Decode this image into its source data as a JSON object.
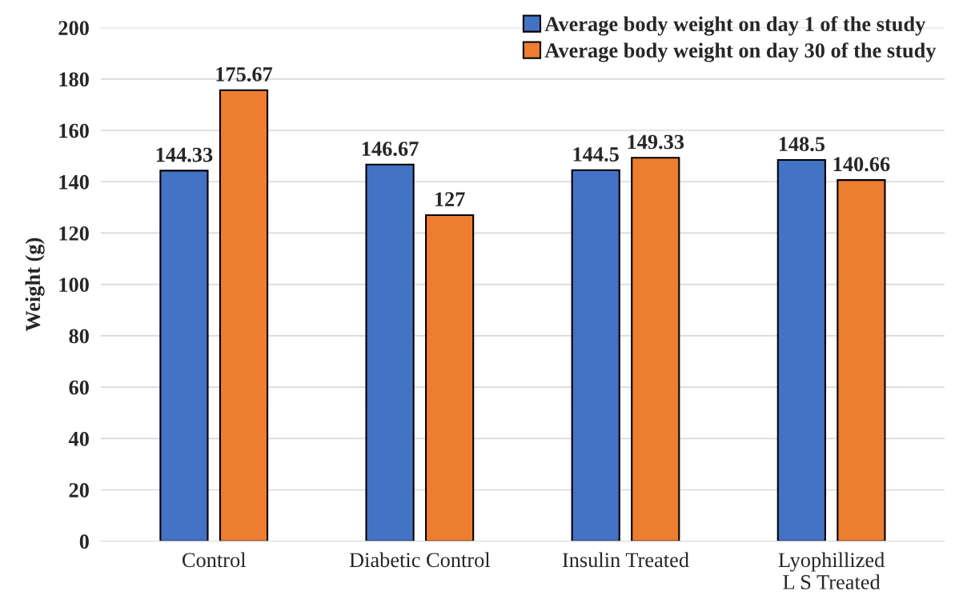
{
  "chart_data": {
    "type": "bar",
    "ylabel": "Weight (g)",
    "categories": [
      "Control",
      "Diabetic Control",
      "Insulin Treated",
      "Lyophillized\nL S Treated"
    ],
    "series": [
      {
        "name": "Average body weight on day 1 of the study",
        "color": "#4472c4",
        "values": [
          144.33,
          146.67,
          144.5,
          148.5
        ]
      },
      {
        "name": "Average body weight on day 30 of the study",
        "color": "#ed7d31",
        "values": [
          175.67,
          127,
          149.33,
          140.66
        ]
      }
    ],
    "ylim": [
      0,
      200
    ],
    "yticks": [
      0,
      20,
      40,
      60,
      80,
      100,
      120,
      140,
      160,
      180,
      200
    ],
    "grid": "y",
    "legend": "top right",
    "data_labels": true
  }
}
